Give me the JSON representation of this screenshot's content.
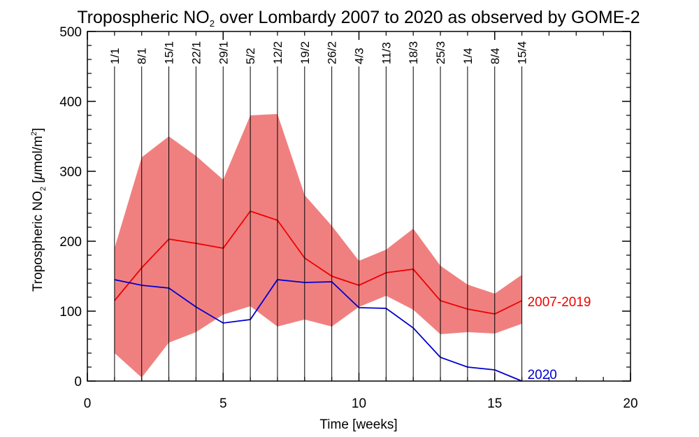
{
  "chart_data": {
    "type": "line",
    "title_parts": [
      "Tropospheric NO",
      "2",
      " over Lombardy 2007 to 2020 as observed by GOME-2"
    ],
    "xlabel": "Time [weeks]",
    "ylabel_parts": [
      "Tropospheric NO",
      "2",
      " [",
      "μ",
      "mol/m",
      "2",
      "]"
    ],
    "xlim": [
      0,
      20
    ],
    "ylim": [
      0,
      500
    ],
    "xticks": [
      0,
      5,
      10,
      15,
      20
    ],
    "yticks": [
      0,
      100,
      200,
      300,
      400,
      500
    ],
    "grid": false,
    "week_labels": [
      "1/1",
      "8/1",
      "15/1",
      "22/1",
      "29/1",
      "5/2",
      "12/2",
      "19/2",
      "26/2",
      "4/3",
      "11/3",
      "18/3",
      "25/3",
      "1/4",
      "8/4",
      "15/4"
    ],
    "x": [
      1,
      2,
      3,
      4,
      5,
      6,
      7,
      8,
      9,
      10,
      11,
      12,
      13,
      14,
      15,
      16
    ],
    "band": {
      "upper": [
        190,
        320,
        350,
        322,
        288,
        380,
        382,
        266,
        222,
        172,
        188,
        218,
        165,
        138,
        125,
        152
      ],
      "lower": [
        40,
        5,
        55,
        70,
        95,
        107,
        78,
        88,
        78,
        106,
        122,
        102,
        67,
        70,
        68,
        82
      ],
      "color": "#f08080"
    },
    "series": [
      {
        "name": "2007-2019",
        "values": [
          115,
          162,
          203,
          197,
          190,
          243,
          230,
          176,
          150,
          137,
          155,
          160,
          115,
          103,
          96,
          115
        ],
        "color": "#ee0000"
      },
      {
        "name": "2020",
        "values": [
          145,
          137,
          133,
          106,
          83,
          88,
          145,
          141,
          142,
          105,
          104,
          76,
          34,
          20,
          16,
          0
        ],
        "color": "#0000d0"
      }
    ]
  }
}
